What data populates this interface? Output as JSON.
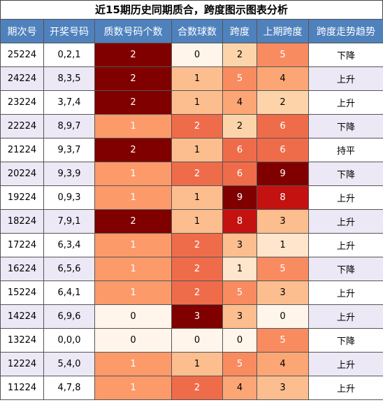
{
  "title": "近15期历史同期质合，跨度图示图表分析",
  "table": {
    "header": [
      "期次号",
      "开奖号码",
      "质数号码个数",
      "合数球数",
      "跨度",
      "上期跨度",
      "跨度走势趋势"
    ],
    "rows": [
      [
        "25224",
        "0,2,1",
        2,
        0,
        2,
        5,
        "下降"
      ],
      [
        "24224",
        "8,3,5",
        2,
        1,
        5,
        4,
        "上升"
      ],
      [
        "23224",
        "3,7,4",
        2,
        1,
        4,
        2,
        "上升"
      ],
      [
        "22224",
        "8,9,7",
        1,
        2,
        2,
        6,
        "下降"
      ],
      [
        "21224",
        "9,3,7",
        2,
        1,
        6,
        6,
        "持平"
      ],
      [
        "20224",
        "9,3,9",
        1,
        2,
        6,
        9,
        "下降"
      ],
      [
        "19224",
        "0,9,3",
        1,
        1,
        9,
        8,
        "上升"
      ],
      [
        "18224",
        "7,9,1",
        2,
        1,
        8,
        3,
        "上升"
      ],
      [
        "17224",
        "6,3,4",
        1,
        2,
        3,
        1,
        "上升"
      ],
      [
        "16224",
        "6,5,6",
        1,
        2,
        1,
        5,
        "下降"
      ],
      [
        "15224",
        "6,4,1",
        1,
        2,
        5,
        3,
        "上升"
      ],
      [
        "14224",
        "6,9,6",
        0,
        3,
        3,
        0,
        "上升"
      ],
      [
        "13224",
        "0,0,0",
        0,
        0,
        0,
        5,
        "下降"
      ],
      [
        "12224",
        "5,4,0",
        1,
        1,
        5,
        4,
        "上升"
      ],
      [
        "11224",
        "4,7,8",
        1,
        2,
        4,
        3,
        "上升"
      ]
    ]
  }
}
